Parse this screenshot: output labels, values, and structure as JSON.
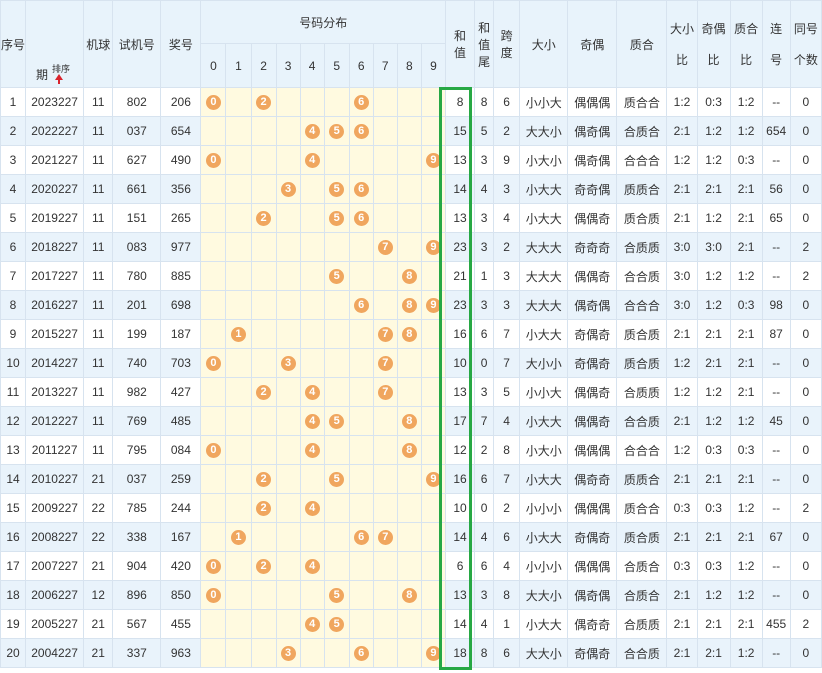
{
  "header": {
    "seq": "序号",
    "period": [
      "期",
      "号"
    ],
    "sort_label": "排序",
    "machine": "机球",
    "test_num": "试机号",
    "prize_num": "奖号",
    "dist_title": "号码分布",
    "digits": [
      "0",
      "1",
      "2",
      "3",
      "4",
      "5",
      "6",
      "7",
      "8",
      "9"
    ],
    "sum": [
      "和",
      "值"
    ],
    "sum_tail": [
      "和",
      "值",
      "尾"
    ],
    "span": [
      "跨",
      "度"
    ],
    "size": "大小",
    "parity": "奇偶",
    "prime": "质合",
    "size_ratio": [
      "大小",
      "比"
    ],
    "parity_ratio": [
      "奇偶",
      "比"
    ],
    "prime_ratio": [
      "质合",
      "比"
    ],
    "consec": [
      "连",
      "号"
    ],
    "same": [
      "同号",
      "个数"
    ]
  },
  "rows": [
    {
      "seq": "1",
      "period": "2023227",
      "machine": "11",
      "test": "802",
      "prize": "206",
      "balls": [
        0,
        2,
        6
      ],
      "sum": "8",
      "tail": "8",
      "span": "6",
      "size": "小小大",
      "parity": "偶偶偶",
      "prime": "质合合",
      "sr": "1:2",
      "pr": "0:3",
      "qr": "1:2",
      "consec": "--",
      "same": "0"
    },
    {
      "seq": "2",
      "period": "2022227",
      "machine": "11",
      "test": "037",
      "prize": "654",
      "balls": [
        4,
        5,
        6
      ],
      "sum": "15",
      "tail": "5",
      "span": "2",
      "size": "大大小",
      "parity": "偶奇偶",
      "prime": "合质合",
      "sr": "2:1",
      "pr": "1:2",
      "qr": "1:2",
      "consec": "654",
      "same": "0"
    },
    {
      "seq": "3",
      "period": "2021227",
      "machine": "11",
      "test": "627",
      "prize": "490",
      "balls": [
        0,
        4,
        9
      ],
      "sum": "13",
      "tail": "3",
      "span": "9",
      "size": "小大小",
      "parity": "偶奇偶",
      "prime": "合合合",
      "sr": "1:2",
      "pr": "1:2",
      "qr": "0:3",
      "consec": "--",
      "same": "0"
    },
    {
      "seq": "4",
      "period": "2020227",
      "machine": "11",
      "test": "661",
      "prize": "356",
      "balls": [
        3,
        5,
        6
      ],
      "sum": "14",
      "tail": "4",
      "span": "3",
      "size": "小大大",
      "parity": "奇奇偶",
      "prime": "质质合",
      "sr": "2:1",
      "pr": "2:1",
      "qr": "2:1",
      "consec": "56",
      "same": "0"
    },
    {
      "seq": "5",
      "period": "2019227",
      "machine": "11",
      "test": "151",
      "prize": "265",
      "balls": [
        2,
        5,
        6
      ],
      "sum": "13",
      "tail": "3",
      "span": "4",
      "size": "小大大",
      "parity": "偶偶奇",
      "prime": "质合质",
      "sr": "2:1",
      "pr": "1:2",
      "qr": "2:1",
      "consec": "65",
      "same": "0"
    },
    {
      "seq": "6",
      "period": "2018227",
      "machine": "11",
      "test": "083",
      "prize": "977",
      "balls": [
        7,
        9
      ],
      "sum": "23",
      "tail": "3",
      "span": "2",
      "size": "大大大",
      "parity": "奇奇奇",
      "prime": "合质质",
      "sr": "3:0",
      "pr": "3:0",
      "qr": "2:1",
      "consec": "--",
      "same": "2"
    },
    {
      "seq": "7",
      "period": "2017227",
      "machine": "11",
      "test": "780",
      "prize": "885",
      "balls": [
        5,
        8
      ],
      "sum": "21",
      "tail": "1",
      "span": "3",
      "size": "大大大",
      "parity": "偶偶奇",
      "prime": "合合质",
      "sr": "3:0",
      "pr": "1:2",
      "qr": "1:2",
      "consec": "--",
      "same": "2"
    },
    {
      "seq": "8",
      "period": "2016227",
      "machine": "11",
      "test": "201",
      "prize": "698",
      "balls": [
        6,
        8,
        9
      ],
      "sum": "23",
      "tail": "3",
      "span": "3",
      "size": "大大大",
      "parity": "偶奇偶",
      "prime": "合合合",
      "sr": "3:0",
      "pr": "1:2",
      "qr": "0:3",
      "consec": "98",
      "same": "0"
    },
    {
      "seq": "9",
      "period": "2015227",
      "machine": "11",
      "test": "199",
      "prize": "187",
      "balls": [
        1,
        7,
        8
      ],
      "sum": "16",
      "tail": "6",
      "span": "7",
      "size": "小大大",
      "parity": "奇偶奇",
      "prime": "质合质",
      "sr": "2:1",
      "pr": "2:1",
      "qr": "2:1",
      "consec": "87",
      "same": "0"
    },
    {
      "seq": "10",
      "period": "2014227",
      "machine": "11",
      "test": "740",
      "prize": "703",
      "balls": [
        0,
        3,
        7
      ],
      "sum": "10",
      "tail": "0",
      "span": "7",
      "size": "大小小",
      "parity": "奇偶奇",
      "prime": "质合质",
      "sr": "1:2",
      "pr": "2:1",
      "qr": "2:1",
      "consec": "--",
      "same": "0"
    },
    {
      "seq": "11",
      "period": "2013227",
      "machine": "11",
      "test": "982",
      "prize": "427",
      "balls": [
        2,
        4,
        7
      ],
      "sum": "13",
      "tail": "3",
      "span": "5",
      "size": "小小大",
      "parity": "偶偶奇",
      "prime": "合质质",
      "sr": "1:2",
      "pr": "1:2",
      "qr": "2:1",
      "consec": "--",
      "same": "0"
    },
    {
      "seq": "12",
      "period": "2012227",
      "machine": "11",
      "test": "769",
      "prize": "485",
      "balls": [
        4,
        5,
        8
      ],
      "sum": "17",
      "tail": "7",
      "span": "4",
      "size": "小大大",
      "parity": "偶偶奇",
      "prime": "合合质",
      "sr": "2:1",
      "pr": "1:2",
      "qr": "1:2",
      "consec": "45",
      "same": "0"
    },
    {
      "seq": "13",
      "period": "2011227",
      "machine": "11",
      "test": "795",
      "prize": "084",
      "balls": [
        0,
        4,
        8
      ],
      "sum": "12",
      "tail": "2",
      "span": "8",
      "size": "小大小",
      "parity": "偶偶偶",
      "prime": "合合合",
      "sr": "1:2",
      "pr": "0:3",
      "qr": "0:3",
      "consec": "--",
      "same": "0"
    },
    {
      "seq": "14",
      "period": "2010227",
      "machine": "21",
      "test": "037",
      "prize": "259",
      "balls": [
        2,
        5,
        9
      ],
      "sum": "16",
      "tail": "6",
      "span": "7",
      "size": "小大大",
      "parity": "偶奇奇",
      "prime": "质质合",
      "sr": "2:1",
      "pr": "2:1",
      "qr": "2:1",
      "consec": "--",
      "same": "0"
    },
    {
      "seq": "15",
      "period": "2009227",
      "machine": "22",
      "test": "785",
      "prize": "244",
      "balls": [
        2,
        4
      ],
      "sum": "10",
      "tail": "0",
      "span": "2",
      "size": "小小小",
      "parity": "偶偶偶",
      "prime": "质合合",
      "sr": "0:3",
      "pr": "0:3",
      "qr": "1:2",
      "consec": "--",
      "same": "2"
    },
    {
      "seq": "16",
      "period": "2008227",
      "machine": "22",
      "test": "338",
      "prize": "167",
      "balls": [
        1,
        6,
        7
      ],
      "sum": "14",
      "tail": "4",
      "span": "6",
      "size": "小大大",
      "parity": "奇偶奇",
      "prime": "质合质",
      "sr": "2:1",
      "pr": "2:1",
      "qr": "2:1",
      "consec": "67",
      "same": "0"
    },
    {
      "seq": "17",
      "period": "2007227",
      "machine": "21",
      "test": "904",
      "prize": "420",
      "balls": [
        0,
        2,
        4
      ],
      "sum": "6",
      "tail": "6",
      "span": "4",
      "size": "小小小",
      "parity": "偶偶偶",
      "prime": "合质合",
      "sr": "0:3",
      "pr": "0:3",
      "qr": "1:2",
      "consec": "--",
      "same": "0"
    },
    {
      "seq": "18",
      "period": "2006227",
      "machine": "12",
      "test": "896",
      "prize": "850",
      "balls": [
        0,
        5,
        8
      ],
      "sum": "13",
      "tail": "3",
      "span": "8",
      "size": "大大小",
      "parity": "偶奇偶",
      "prime": "合质合",
      "sr": "2:1",
      "pr": "1:2",
      "qr": "1:2",
      "consec": "--",
      "same": "0"
    },
    {
      "seq": "19",
      "period": "2005227",
      "machine": "21",
      "test": "567",
      "prize": "455",
      "balls": [
        4,
        5
      ],
      "sum": "14",
      "tail": "4",
      "span": "1",
      "size": "小大大",
      "parity": "偶奇奇",
      "prime": "合质质",
      "sr": "2:1",
      "pr": "2:1",
      "qr": "2:1",
      "consec": "455",
      "same": "2"
    },
    {
      "seq": "20",
      "period": "2004227",
      "machine": "21",
      "test": "337",
      "prize": "963",
      "balls": [
        3,
        6,
        9
      ],
      "sum": "18",
      "tail": "8",
      "span": "6",
      "size": "大大小",
      "parity": "奇偶奇",
      "prime": "合合质",
      "sr": "2:1",
      "pr": "2:1",
      "qr": "1:2",
      "consec": "--",
      "same": "0"
    }
  ],
  "colors": {
    "ball": "#f0a65e",
    "highlight": "#27a844",
    "header_bg": "#e8f3fb",
    "row_alt": "#e9f3fb",
    "dist_bg": "#fffae0",
    "sort_arrow": "#d9232d"
  }
}
